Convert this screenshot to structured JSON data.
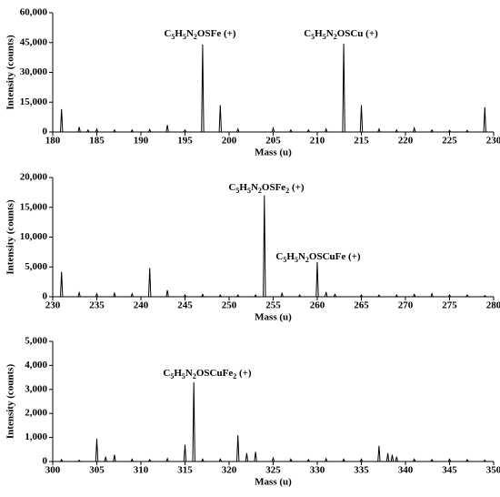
{
  "chart_data": [
    {
      "type": "spectrum",
      "x_label": "Mass (u)",
      "y_label": "Intensity (counts)",
      "x": [
        181,
        183,
        184,
        185,
        187,
        189,
        191,
        193,
        195,
        197,
        199,
        201,
        205,
        207,
        209,
        211,
        213,
        215,
        217,
        219,
        221,
        223,
        225,
        227,
        229
      ],
      "values": [
        11500,
        2500,
        1000,
        1500,
        1000,
        1000,
        1200,
        3500,
        1000,
        44000,
        13500,
        1500,
        2000,
        1000,
        1000,
        1500,
        44500,
        13500,
        1500,
        1000,
        2000,
        1000,
        800,
        800,
        12500
      ],
      "color": "#000000",
      "xlim": [
        180,
        230
      ],
      "xticks": [
        180,
        185,
        190,
        195,
        200,
        205,
        210,
        215,
        220,
        225,
        230
      ],
      "ylim": [
        0,
        60000
      ],
      "yticks": [
        0,
        {
          "value": 15000,
          "label": "15,000"
        },
        {
          "value": 30000,
          "label": "30,000"
        },
        {
          "value": 45000,
          "label": "45,000"
        },
        {
          "value": 60000,
          "label": "60,000"
        }
      ],
      "annotations": [
        "C5H5N2OSFe (+)",
        "C5H5N2OSCu (+)"
      ]
    },
    {
      "type": "spectrum",
      "x_label": "Mass (u)",
      "y_label": "Intensity (counts)",
      "x": [
        231,
        233,
        235,
        237,
        239,
        241,
        243,
        245,
        247,
        249,
        251,
        253,
        254,
        256,
        258,
        260,
        261,
        262,
        265,
        267,
        269,
        271,
        273,
        275,
        277,
        279
      ],
      "values": [
        4200,
        700,
        500,
        600,
        500,
        4800,
        1100,
        300,
        400,
        300,
        300,
        300,
        17000,
        600,
        300,
        5800,
        800,
        400,
        300,
        300,
        300,
        400,
        500,
        300,
        300,
        200
      ],
      "color": "#000000",
      "xlim": [
        230,
        280
      ],
      "xticks": [
        230,
        235,
        240,
        245,
        250,
        255,
        260,
        265,
        270,
        275,
        280
      ],
      "ylim": [
        0,
        20000
      ],
      "yticks": [
        0,
        {
          "value": 5000,
          "label": "5,000"
        },
        {
          "value": 10000,
          "label": "10,000"
        },
        {
          "value": 15000,
          "label": "15,000"
        },
        {
          "value": 20000,
          "label": "20,000"
        }
      ],
      "annotations": [
        "C5H5N2OSFe2 (+)",
        "C5H5N2OSCuFe (+)"
      ]
    },
    {
      "type": "spectrum",
      "x_label": "Mass (u)",
      "y_label": "Intensity (counts)",
      "x": [
        301,
        303,
        305,
        306,
        307,
        309,
        311,
        313,
        315,
        316,
        317,
        319,
        321,
        322,
        323,
        325,
        327,
        329,
        331,
        333,
        335,
        337,
        338,
        338.5,
        339,
        341,
        343,
        345,
        347,
        349
      ],
      "values": [
        80,
        60,
        950,
        200,
        280,
        100,
        80,
        120,
        700,
        3300,
        100,
        100,
        1100,
        350,
        400,
        150,
        100,
        80,
        120,
        100,
        100,
        650,
        350,
        280,
        200,
        100,
        80,
        100,
        80,
        60
      ],
      "color": "#000000",
      "xlim": [
        300,
        350
      ],
      "xticks": [
        300,
        305,
        310,
        315,
        320,
        325,
        330,
        335,
        340,
        345,
        350
      ],
      "ylim": [
        0,
        5000
      ],
      "yticks": [
        0,
        {
          "value": 1000,
          "label": "1,000"
        },
        {
          "value": 2000,
          "label": "2,000"
        },
        {
          "value": 3000,
          "label": "3,000"
        },
        {
          "value": 4000,
          "label": "4,000"
        },
        {
          "value": 5000,
          "label": "5,000"
        }
      ],
      "annotations": [
        "C5H5N2OSCuFe2 (+)"
      ]
    }
  ]
}
